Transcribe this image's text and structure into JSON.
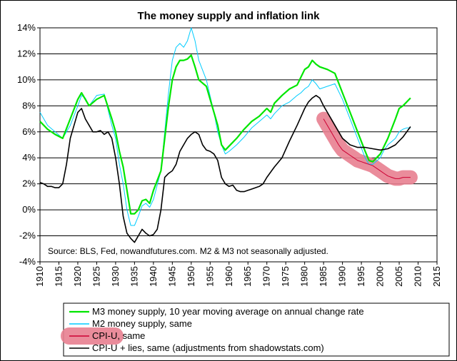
{
  "chart_data": {
    "type": "line",
    "title": "The money supply and inflation link",
    "annotation": "Source: BLS, Fed, nowandfutures.com. M2 & M3 not seasonally adjusted.",
    "xlim": [
      1910,
      2015
    ],
    "ylim": [
      -4,
      14
    ],
    "x_ticks": [
      "1910",
      "1915",
      "1920",
      "1925",
      "1930",
      "1935",
      "1940",
      "1945",
      "1950",
      "1955",
      "1960",
      "1965",
      "1970",
      "1975",
      "1980",
      "1985",
      "1990",
      "1995",
      "2000",
      "2005",
      "2010",
      "2015"
    ],
    "y_ticks": [
      "14%",
      "12%",
      "10%",
      "8%",
      "6%",
      "4%",
      "2%",
      "0%",
      "-2%",
      "-4%"
    ],
    "y_tick_values": [
      14,
      12,
      10,
      8,
      6,
      4,
      2,
      0,
      -2,
      -4
    ],
    "grid": "horizontal",
    "legend_position": "bottom",
    "series": [
      {
        "name": "M3 money supply, 10 year moving average on annual change rate",
        "color": "#00e600",
        "x": [
          1910,
          1912,
          1914,
          1916,
          1918,
          1920,
          1921,
          1922,
          1923,
          1925,
          1927,
          1929,
          1930,
          1931,
          1932,
          1933,
          1934,
          1935,
          1936,
          1937,
          1938,
          1939,
          1940,
          1942,
          1944,
          1945,
          1946,
          1947,
          1948,
          1949,
          1950,
          1951,
          1952,
          1954,
          1956,
          1957,
          1958,
          1959,
          1960,
          1962,
          1964,
          1966,
          1968,
          1970,
          1971,
          1972,
          1974,
          1976,
          1978,
          1979,
          1980,
          1981,
          1982,
          1983,
          1984,
          1986,
          1988,
          1990,
          1992,
          1994,
          1996,
          1997,
          1998,
          2000,
          2002,
          2004,
          2005,
          2006,
          2007,
          2008
        ],
        "values": [
          6.8,
          6.2,
          5.8,
          5.5,
          7.0,
          8.5,
          9.0,
          8.5,
          8.0,
          8.5,
          8.8,
          7.0,
          6.0,
          4.5,
          3.3,
          1.5,
          -0.3,
          -0.3,
          0.0,
          0.7,
          0.8,
          0.5,
          1.5,
          3.0,
          8.0,
          10.0,
          11.0,
          11.5,
          11.5,
          11.6,
          11.9,
          11.0,
          10.0,
          9.5,
          7.5,
          6.5,
          5.0,
          4.6,
          4.9,
          5.5,
          6.2,
          6.8,
          7.2,
          7.8,
          7.5,
          8.2,
          8.8,
          9.3,
          9.6,
          10.2,
          10.8,
          11.0,
          11.5,
          11.2,
          11.0,
          10.8,
          10.5,
          9.0,
          7.5,
          6.0,
          4.5,
          3.8,
          3.7,
          4.3,
          5.5,
          7.0,
          7.8,
          8.0,
          8.3,
          8.6
        ]
      },
      {
        "name": "M2 money supply, same",
        "color": "#00ccff",
        "x": [
          1910,
          1912,
          1914,
          1916,
          1918,
          1920,
          1921,
          1922,
          1923,
          1925,
          1927,
          1929,
          1930,
          1931,
          1932,
          1933,
          1934,
          1935,
          1936,
          1937,
          1938,
          1939,
          1940,
          1942,
          1944,
          1945,
          1946,
          1947,
          1948,
          1949,
          1950,
          1951,
          1952,
          1954,
          1956,
          1957,
          1958,
          1959,
          1960,
          1962,
          1964,
          1966,
          1968,
          1970,
          1971,
          1972,
          1974,
          1976,
          1978,
          1979,
          1980,
          1981,
          1982,
          1983,
          1984,
          1986,
          1988,
          1990,
          1992,
          1994,
          1996,
          1997,
          1998,
          2000,
          2001,
          2002,
          2004,
          2005,
          2006,
          2007,
          2008
        ],
        "values": [
          7.5,
          6.5,
          6.0,
          5.5,
          6.5,
          8.0,
          8.8,
          8.6,
          8.0,
          8.8,
          8.9,
          6.5,
          5.5,
          3.5,
          2.0,
          0.0,
          -1.2,
          -1.2,
          -0.5,
          0.3,
          0.5,
          0.2,
          0.8,
          3.0,
          9.0,
          11.5,
          12.5,
          12.8,
          12.5,
          13.0,
          14.0,
          13.0,
          11.5,
          10.0,
          7.5,
          6.0,
          5.0,
          4.3,
          4.5,
          5.0,
          5.6,
          6.3,
          6.8,
          7.3,
          7.0,
          7.4,
          8.0,
          8.3,
          8.8,
          9.0,
          9.3,
          9.5,
          10.0,
          9.7,
          9.3,
          9.5,
          9.7,
          8.5,
          7.0,
          5.5,
          4.0,
          3.5,
          3.5,
          4.0,
          4.6,
          5.0,
          5.5,
          6.0,
          6.2,
          6.3,
          6.3
        ]
      },
      {
        "name": "CPI-U, same",
        "color": "#cc0033",
        "highlight_color": "#e88090",
        "x": [
          1985,
          1986,
          1987,
          1988,
          1989,
          1990,
          1991,
          1992,
          1993,
          1994,
          1995,
          1996,
          1997,
          1998,
          1999,
          2000,
          2001,
          2002,
          2003,
          2004,
          2005,
          2006,
          2007,
          2008
        ],
        "values": [
          7.0,
          6.5,
          6.0,
          5.5,
          5.0,
          4.6,
          4.4,
          4.2,
          4.0,
          3.8,
          3.7,
          3.6,
          3.5,
          3.4,
          3.2,
          3.0,
          2.8,
          2.6,
          2.5,
          2.4,
          2.4,
          2.5,
          2.5,
          2.5
        ]
      },
      {
        "name": "CPI-U + lies, same (adjustments from shadowstats.com)",
        "color": "#000000",
        "x": [
          1910,
          1911,
          1912,
          1913,
          1914,
          1915,
          1916,
          1917,
          1918,
          1919,
          1920,
          1921,
          1922,
          1923,
          1924,
          1925,
          1926,
          1927,
          1928,
          1929,
          1930,
          1931,
          1932,
          1933,
          1934,
          1935,
          1936,
          1937,
          1938,
          1939,
          1940,
          1941,
          1942,
          1943,
          1944,
          1945,
          1946,
          1947,
          1948,
          1949,
          1950,
          1951,
          1952,
          1953,
          1954,
          1955,
          1956,
          1957,
          1958,
          1959,
          1960,
          1961,
          1962,
          1963,
          1964,
          1965,
          1966,
          1967,
          1968,
          1969,
          1970,
          1972,
          1974,
          1976,
          1978,
          1980,
          1981,
          1982,
          1983,
          1984,
          1985,
          1986,
          1988,
          1990,
          1992,
          1994,
          1996,
          1998,
          2000,
          2002,
          2004,
          2005,
          2006,
          2007,
          2008
        ],
        "values": [
          2.1,
          2.0,
          1.8,
          1.8,
          1.7,
          1.7,
          2.0,
          3.5,
          5.5,
          6.5,
          7.5,
          7.8,
          7.0,
          6.5,
          6.0,
          6.0,
          6.1,
          5.8,
          6.0,
          5.5,
          4.0,
          2.0,
          -0.5,
          -1.8,
          -2.2,
          -2.5,
          -2.0,
          -1.5,
          -1.8,
          -2.0,
          -1.9,
          -1.5,
          0.0,
          2.5,
          2.8,
          3.0,
          3.5,
          4.5,
          5.0,
          5.5,
          5.8,
          6.0,
          5.8,
          5.0,
          4.6,
          4.5,
          4.3,
          3.8,
          2.5,
          2.0,
          1.8,
          1.9,
          1.5,
          1.4,
          1.4,
          1.5,
          1.6,
          1.7,
          1.8,
          2.0,
          2.5,
          3.3,
          4.0,
          5.3,
          6.5,
          7.8,
          8.3,
          8.6,
          8.8,
          8.6,
          8.0,
          7.5,
          6.5,
          5.5,
          5.0,
          4.8,
          4.8,
          4.7,
          4.6,
          4.7,
          5.0,
          5.3,
          5.6,
          6.0,
          6.4
        ]
      }
    ],
    "legend": [
      {
        "label": "M3 money supply, 10 year moving average on annual change rate",
        "color": "#00e600"
      },
      {
        "label": "M2 money supply, same",
        "color": "#00ccff"
      },
      {
        "label": "CPI-U, same",
        "color": "#cc0033",
        "highlight_color": "#e88090"
      },
      {
        "label": "CPI-U + lies, same (adjustments from shadowstats.com)",
        "color": "#000000"
      }
    ]
  }
}
